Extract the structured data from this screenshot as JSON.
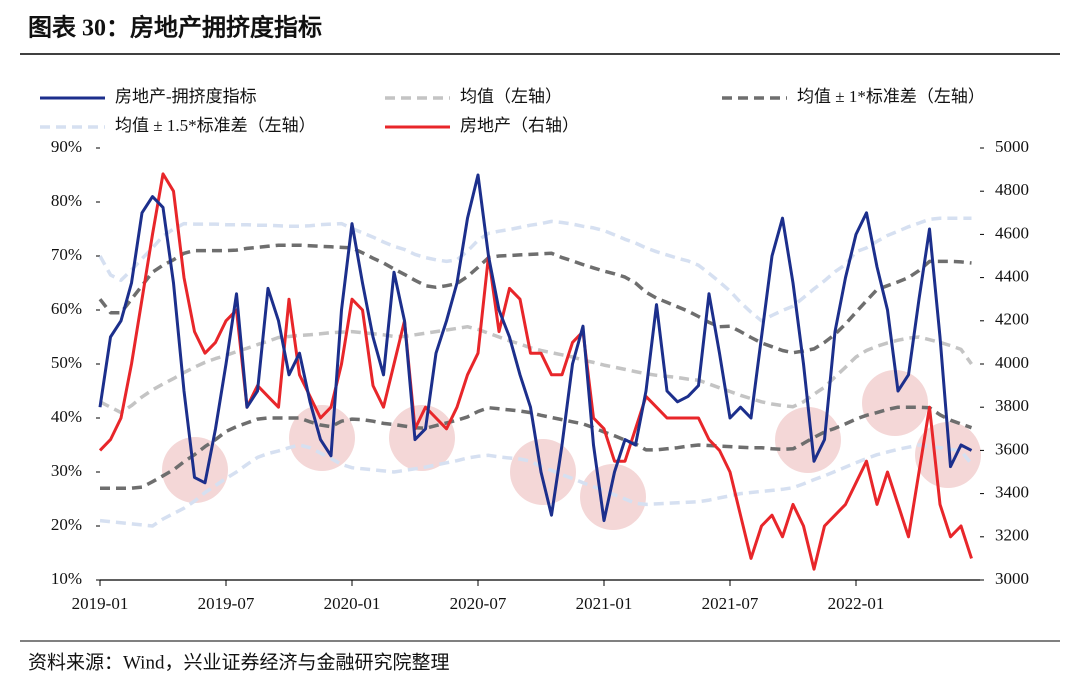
{
  "chart_data": {
    "type": "line",
    "title": "图表 30：房地产拥挤度指标",
    "source": "资料来源：Wind，兴业证券经济与金融研究院整理",
    "categories": [
      "2019-01",
      null,
      null,
      null,
      null,
      null,
      null,
      null,
      null,
      null,
      null,
      null,
      "2019-07",
      null,
      null,
      null,
      null,
      null,
      null,
      null,
      null,
      null,
      null,
      null,
      "2020-01",
      null,
      null,
      null,
      null,
      null,
      null,
      null,
      null,
      null,
      null,
      null,
      "2020-07",
      null,
      null,
      null,
      null,
      null,
      null,
      null,
      null,
      null,
      null,
      null,
      "2021-01",
      null,
      null,
      null,
      null,
      null,
      null,
      null,
      null,
      null,
      null,
      null,
      "2021-07",
      null,
      null,
      null,
      null,
      null,
      null,
      null,
      null,
      null,
      null,
      null,
      "2022-01",
      null,
      null,
      null,
      null,
      null,
      null,
      null,
      null,
      null,
      null,
      null
    ],
    "ylim": [
      10,
      90
    ],
    "yticks": [
      {
        "value": 10,
        "label": "10%"
      },
      {
        "value": 20,
        "label": "20%"
      },
      {
        "value": 30,
        "label": "30%"
      },
      {
        "value": 40,
        "label": "40%"
      },
      {
        "value": 50,
        "label": "50%"
      },
      {
        "value": 60,
        "label": "60%"
      },
      {
        "value": 70,
        "label": "70%"
      },
      {
        "value": 80,
        "label": "80%"
      },
      {
        "value": 90,
        "label": "90%"
      }
    ],
    "y2lim": [
      3000,
      5000
    ],
    "y2ticks": [
      3000,
      3200,
      3400,
      3600,
      3800,
      4000,
      4200,
      4400,
      4600,
      4800,
      5000
    ],
    "series": [
      {
        "name": "房地产-拥挤度指标",
        "color": "#1c2f8c",
        "dashed": false,
        "values": [
          42,
          55,
          58,
          65,
          78,
          81,
          79,
          65,
          45,
          29,
          28,
          38,
          50,
          63,
          42,
          45,
          64,
          58,
          48,
          52,
          43,
          36,
          33,
          60,
          76,
          65,
          55,
          48,
          67,
          58,
          36,
          38,
          52,
          58,
          65,
          77,
          85,
          70,
          60,
          55,
          48,
          42,
          30,
          22,
          35,
          50,
          57,
          35,
          21,
          30,
          36,
          35,
          45,
          61,
          45,
          43,
          44,
          46,
          63,
          52,
          40,
          42,
          40,
          55,
          70,
          77,
          65,
          50,
          32,
          36,
          56,
          66,
          74,
          78,
          68,
          60,
          45,
          48,
          62,
          75,
          55,
          31,
          35,
          34
        ]
      },
      {
        "name": "均值（左轴）",
        "color": "#c4c4c4",
        "dashed": true,
        "values": [
          43,
          42,
          41,
          42.3,
          43.9,
          45.2,
          46.3,
          47.3,
          48.4,
          49.4,
          50.3,
          51,
          51.6,
          52.3,
          52.9,
          53.6,
          54.2,
          54.9,
          55.1,
          55.3,
          55.4,
          55.6,
          55.8,
          55.9,
          56,
          55.8,
          55.6,
          55.4,
          55.1,
          55.1,
          55.4,
          55.7,
          56,
          56.3,
          56.6,
          56.9,
          56.4,
          55.7,
          55,
          54.3,
          53.7,
          53,
          52.5,
          52.1,
          51.7,
          51.3,
          50.7,
          50.3,
          49.8,
          49.4,
          49,
          48.6,
          48.2,
          47.9,
          47.7,
          47.5,
          47.2,
          47,
          46.3,
          45.6,
          44.9,
          44.2,
          43.6,
          43,
          42.6,
          42.3,
          42.1,
          43,
          44.4,
          45.7,
          47.6,
          49.4,
          51.3,
          52.5,
          53.3,
          53.9,
          54.4,
          54.8,
          55,
          54.5,
          54,
          53.4,
          52.7,
          50
        ]
      },
      {
        "name": "均值 ± 1*标准差（左轴）",
        "color": "#6e6e6e",
        "dashed": true,
        "upper": [
          62,
          59.5,
          59.5,
          62,
          64.5,
          67,
          68.3,
          69.3,
          70.5,
          71,
          71,
          71,
          71,
          71.1,
          71.4,
          71.6,
          71.8,
          72,
          72,
          72,
          71.9,
          71.8,
          71.7,
          71.6,
          71.5,
          70.6,
          69.6,
          68.7,
          67.6,
          66.6,
          65.5,
          64.5,
          64.2,
          64.5,
          64.9,
          66.2,
          67.9,
          69.7,
          70,
          70.1,
          70.2,
          70.3,
          70.4,
          70.5,
          69.7,
          69.1,
          68.4,
          67.8,
          67.2,
          66.7,
          66.1,
          65,
          63.3,
          62.2,
          61.4,
          60.6,
          59.8,
          58.8,
          57.7,
          56.9,
          57,
          56,
          54.9,
          53.9,
          53.2,
          52.5,
          52.1,
          52.4,
          52.8,
          54,
          55.5,
          57.4,
          59.6,
          61.7,
          63.8,
          64.5,
          65.2,
          66,
          67.3,
          69,
          69,
          69,
          68.9,
          68.7
        ],
        "lower": [
          27,
          27,
          27,
          27,
          27.2,
          28.2,
          29.3,
          30.4,
          31.9,
          33.2,
          34.7,
          36,
          37.5,
          38.4,
          39.1,
          39.8,
          40,
          40,
          40,
          40,
          39.3,
          38.7,
          38.4,
          39.4,
          39.8,
          39.7,
          39.4,
          39,
          38.8,
          38.5,
          38.2,
          38.1,
          38.6,
          39.1,
          39.6,
          40.2,
          41.2,
          41.9,
          41.7,
          41.5,
          41.3,
          41,
          40.5,
          40.1,
          39.7,
          39.3,
          38.9,
          38.2,
          37.4,
          36.7,
          35.9,
          35.2,
          34.1,
          34.1,
          34.3,
          34.5,
          34.8,
          35,
          34.9,
          34.8,
          34.7,
          34.6,
          34.5,
          34.5,
          34.3,
          34.2,
          34.3,
          35.3,
          36.4,
          37.4,
          38.1,
          38.9,
          39.8,
          40.5,
          41,
          41.6,
          42,
          42,
          42,
          41.9,
          40.6,
          39.6,
          38.9,
          38.2
        ]
      },
      {
        "name": "均值 ± 1.5*标准差（左轴）",
        "color": "#d6e0f1",
        "dashed": true,
        "upper": [
          70,
          66.5,
          65.5,
          67.4,
          69.5,
          71.5,
          73.7,
          75,
          76,
          75.9,
          75.9,
          75.9,
          75.8,
          75.8,
          75.8,
          75.7,
          75.7,
          75.6,
          75.5,
          75.5,
          75.6,
          75.8,
          75.9,
          76,
          75.1,
          74.3,
          73.5,
          72.6,
          71.8,
          71.2,
          70.3,
          69.7,
          69.3,
          69,
          69.3,
          70.9,
          72.9,
          74.2,
          74.6,
          74.9,
          75.3,
          75.7,
          76,
          76.4,
          76.2,
          75.9,
          75.5,
          75.2,
          74.7,
          73.9,
          73.1,
          72.4,
          71.5,
          70.8,
          70.2,
          69.6,
          69.1,
          68.3,
          66.8,
          65.2,
          63.5,
          61.4,
          59.6,
          58,
          59,
          59.9,
          60.7,
          62.3,
          63.9,
          65.4,
          67.1,
          68.4,
          70.8,
          71.5,
          72.7,
          73.8,
          74.6,
          75.4,
          76.1,
          76.8,
          77,
          77,
          77,
          77
        ],
        "lower": [
          21,
          20.8,
          20.6,
          20.4,
          20.2,
          20,
          21.3,
          22.3,
          23.3,
          24.6,
          26.2,
          27.5,
          28.8,
          30,
          31.4,
          32.7,
          33.4,
          33.9,
          34.5,
          35,
          34.5,
          33.5,
          32.5,
          31.4,
          30.8,
          30.6,
          30.4,
          30.2,
          30,
          30.3,
          30.6,
          30.9,
          31.3,
          31.7,
          32.1,
          32.6,
          32.9,
          33.1,
          32.8,
          32.6,
          32.4,
          32,
          31,
          30.3,
          29.5,
          28.8,
          28,
          27.3,
          26.6,
          25.8,
          25,
          24.2,
          24,
          24.1,
          24.2,
          24.3,
          24.4,
          24.5,
          24.8,
          25.2,
          25.6,
          26,
          26.2,
          26.4,
          26.6,
          26.8,
          27.1,
          27.8,
          28.6,
          29.3,
          30.1,
          30.9,
          31.7,
          32.5,
          33.2,
          33.7,
          34.2,
          34.6,
          35,
          34.7,
          34.5,
          34.2,
          33.9,
          31.5
        ]
      },
      {
        "name": "房地产（右轴）",
        "color": "#e8262a",
        "dashed": false,
        "axis": "y2",
        "values": [
          3600,
          3650,
          3750,
          4000,
          4300,
          4600,
          4880,
          4800,
          4400,
          4150,
          4050,
          4100,
          4200,
          4250,
          3800,
          3900,
          3850,
          3800,
          4300,
          3950,
          3850,
          3750,
          3800,
          4000,
          4300,
          4250,
          3900,
          3800,
          4000,
          4200,
          3700,
          3800,
          3750,
          3700,
          3800,
          3950,
          4050,
          4500,
          4150,
          4350,
          4300,
          4050,
          4050,
          3950,
          3950,
          4100,
          4150,
          3750,
          3700,
          3550,
          3550,
          3700,
          3850,
          3800,
          3750,
          3750,
          3750,
          3750,
          3650,
          3600,
          3500,
          3300,
          3100,
          3250,
          3300,
          3200,
          3350,
          3250,
          3050,
          3250,
          3300,
          3350,
          3450,
          3550,
          3350,
          3500,
          3350,
          3200,
          3500,
          3800,
          3350,
          3200,
          3250,
          3100
        ]
      }
    ]
  }
}
